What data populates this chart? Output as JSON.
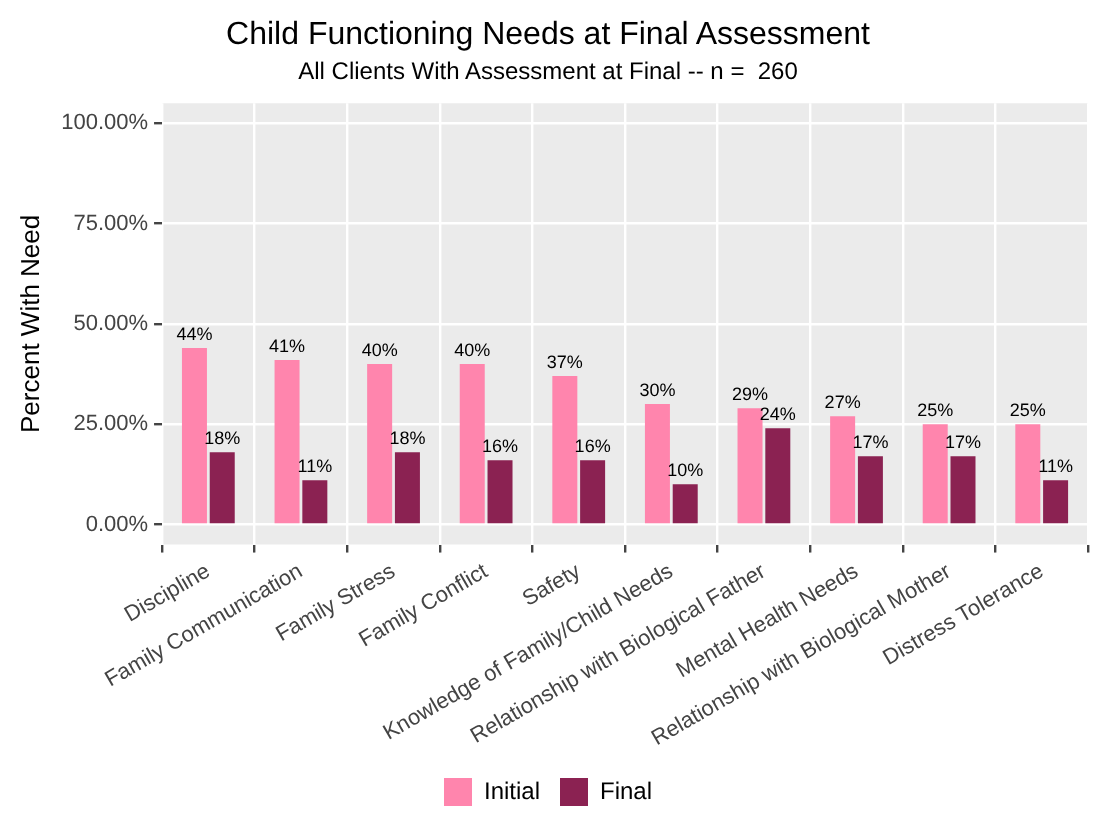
{
  "chart_data": {
    "type": "bar",
    "title": "Child Functioning Needs at Final Assessment",
    "subtitle": "All Clients With Assessment at Final -- n =  260",
    "ylabel": "Percent With Need",
    "categories": [
      "Discipline",
      "Family Communication",
      "Family Stress",
      "Family Conflict",
      "Safety",
      "Knowledge of Family/Child Needs",
      "Relationship with Biological Father",
      "Mental Health Needs",
      "Relationship with Biological Mother",
      "Distress Tolerance"
    ],
    "series": [
      {
        "name": "Initial",
        "color": "#ff85ad",
        "values": [
          44,
          41,
          40,
          40,
          37,
          30,
          29,
          27,
          25,
          25
        ],
        "value_labels": [
          "44%",
          "41%",
          "40%",
          "40%",
          "37%",
          "30%",
          "29%",
          "27%",
          "25%",
          "25%"
        ]
      },
      {
        "name": "Final",
        "color": "#8b2252",
        "values": [
          18,
          11,
          18,
          16,
          16,
          10,
          24,
          17,
          17,
          11
        ],
        "value_labels": [
          "18%",
          "11%",
          "18%",
          "16%",
          "16%",
          "10%",
          "24%",
          "17%",
          "17%",
          "11%"
        ]
      }
    ],
    "ylim": [
      -5,
      105
    ],
    "yticks": [
      {
        "value": 0,
        "label": "0.00%"
      },
      {
        "value": 25,
        "label": "25.00%"
      },
      {
        "value": 50,
        "label": "50.00%"
      },
      {
        "value": 75,
        "label": "75.00%"
      },
      {
        "value": 100,
        "label": "100.00%"
      }
    ],
    "grid": true,
    "legend": "bottom"
  }
}
